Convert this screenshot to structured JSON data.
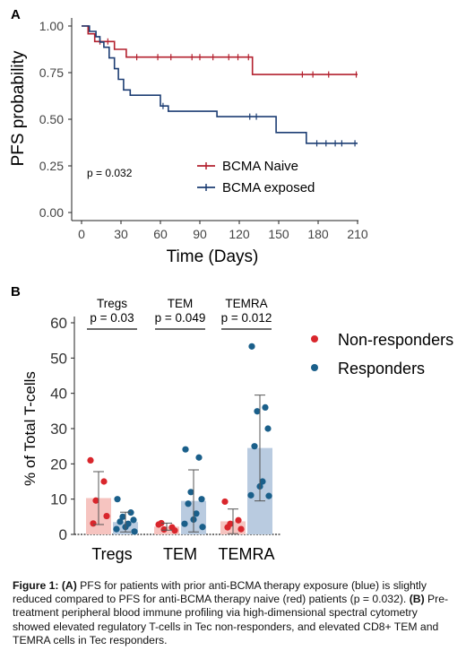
{
  "panel_a": {
    "label": "A",
    "xlabel": "Time (Days)",
    "ylabel": "PFS probability",
    "xticks": [
      0,
      30,
      60,
      90,
      120,
      150,
      180,
      210
    ],
    "yticks": [
      "0.00",
      "0.25",
      "0.50",
      "0.75",
      "1.00"
    ],
    "pvalue": "p = 0.032",
    "legend": [
      "BCMA Naive",
      "BCMA exposed"
    ]
  },
  "panel_b": {
    "label": "B",
    "ylabel": "% of Total T-cells",
    "yticks": [
      0,
      10,
      20,
      30,
      40,
      50,
      60
    ],
    "legend": [
      "Non-responders",
      "Responders"
    ],
    "comparisons": [
      {
        "name": "Tregs",
        "p": "p = 0.03"
      },
      {
        "name": "TEM",
        "p": "p = 0.049"
      },
      {
        "name": "TEMRA",
        "p": "p = 0.012"
      }
    ]
  },
  "caption": {
    "a_tag": "(A)",
    "a_text": "PFS for patients with prior anti-BCMA therapy exposure (blue) is slightly reduced compared to PFS for anti-BCMA therapy naive (red) patients (p = 0.032).",
    "b_tag": "(B)",
    "b_text": "Pre-treatment peripheral blood immune profiling via high-dimensional spectral cytometry showed elevated regulatory T-cells in Tec non-responders, and elevated CD8+ TEM and TEMRA cells in Tec responders.",
    "prefix": "Figure 1:"
  },
  "colors": {
    "naive": "#b3202e",
    "exposed": "#1c3d73",
    "nonresp": "#d9262c",
    "resp": "#1a5f8a",
    "nonresp_bar": "#f6c4c0",
    "resp_bar": "#b9cbe0"
  },
  "chart_data": [
    {
      "type": "line",
      "title": "",
      "xlabel": "Time (Days)",
      "ylabel": "PFS probability",
      "xlim": [
        0,
        210
      ],
      "ylim": [
        0,
        1
      ],
      "step": true,
      "series": [
        {
          "name": "BCMA Naive",
          "x": [
            0,
            5,
            10,
            25,
            34,
            130,
            210
          ],
          "y": [
            1.0,
            0.958,
            0.917,
            0.875,
            0.833,
            0.74,
            0.74
          ],
          "censored": [
            [
              14,
              0.917
            ],
            [
              20,
              0.917
            ],
            [
              42,
              0.833
            ],
            [
              58,
              0.833
            ],
            [
              68,
              0.833
            ],
            [
              84,
              0.833
            ],
            [
              90,
              0.833
            ],
            [
              100,
              0.833
            ],
            [
              112,
              0.833
            ],
            [
              119,
              0.833
            ],
            [
              127,
              0.833
            ],
            [
              168,
              0.74
            ],
            [
              176,
              0.74
            ],
            [
              188,
              0.74
            ],
            [
              209,
              0.74
            ]
          ]
        },
        {
          "name": "BCMA exposed",
          "x": [
            0,
            6,
            11,
            14,
            17,
            21,
            25,
            28,
            32,
            37,
            60,
            66,
            103,
            148,
            171,
            210
          ],
          "y": [
            1.0,
            0.971,
            0.943,
            0.914,
            0.886,
            0.829,
            0.771,
            0.714,
            0.657,
            0.629,
            0.571,
            0.543,
            0.514,
            0.429,
            0.371,
            0.371
          ],
          "censored": [
            [
              62,
              0.571
            ],
            [
              128,
              0.514
            ],
            [
              133,
              0.514
            ],
            [
              179,
              0.371
            ],
            [
              186,
              0.371
            ],
            [
              193,
              0.371
            ],
            [
              198,
              0.371
            ],
            [
              208,
              0.371
            ]
          ]
        }
      ],
      "annotation": "p = 0.032",
      "legend": "inside bottom-right"
    },
    {
      "type": "bar",
      "title": "",
      "xlabel": "",
      "ylabel": "% of Total T-cells",
      "ylim": [
        0,
        60
      ],
      "categories": [
        "Tregs",
        "TEM",
        "TEMRA"
      ],
      "series": [
        {
          "name": "Non-responders",
          "values": [
            10.3,
            2.2,
            3.7
          ],
          "sd": [
            7.5,
            1.0,
            3.5
          ],
          "points": [
            [
              21.0,
              15.0,
              9.6,
              5.2,
              3.1
            ],
            [
              2.8,
              2.0,
              1.4,
              1.1,
              3.2
            ],
            [
              9.3,
              4.0,
              3.0,
              1.5,
              2.0
            ]
          ]
        },
        {
          "name": "Responders",
          "values": [
            3.5,
            9.5,
            24.5
          ],
          "sd": [
            2.8,
            8.8,
            15.0
          ],
          "points": [
            [
              10.0,
              6.2,
              5.0,
              4.1,
              3.6,
              3.0,
              2.1,
              1.5,
              0.8
            ],
            [
              24.1,
              21.8,
              12.0,
              10.0,
              8.7,
              5.9,
              4.2,
              3.0,
              2.1
            ],
            [
              53.3,
              36.0,
              34.9,
              30.0,
              25.0,
              15.0,
              13.6,
              11.1,
              10.9
            ]
          ]
        }
      ],
      "significance": [
        "p = 0.03",
        "p = 0.049",
        "p = 0.012"
      ],
      "legend": "right"
    }
  ]
}
